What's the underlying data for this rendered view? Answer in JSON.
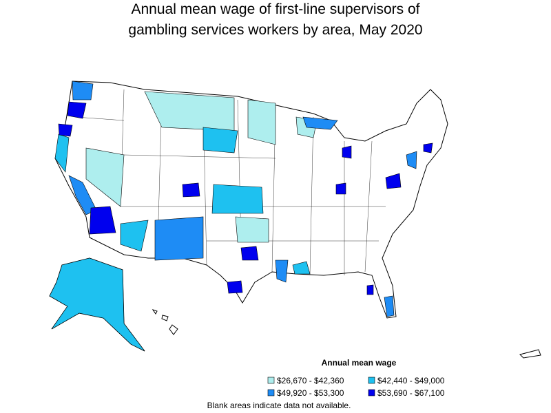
{
  "title": [
    "Annual mean wage of first-line supervisors of",
    "gambling services workers by area, May 2020"
  ],
  "legend": {
    "title": "Annual mean wage",
    "items": [
      {
        "label": "$26,670 - $42,360",
        "color": "#aeeeee"
      },
      {
        "label": "$42,440 - $49,000",
        "color": "#1ec1f0"
      },
      {
        "label": "$49,920 - $53,300",
        "color": "#1e8cf5"
      },
      {
        "label": "$53,690 - $67,100",
        "color": "#0000ee"
      }
    ]
  },
  "note": "Blank areas indicate data not available."
}
